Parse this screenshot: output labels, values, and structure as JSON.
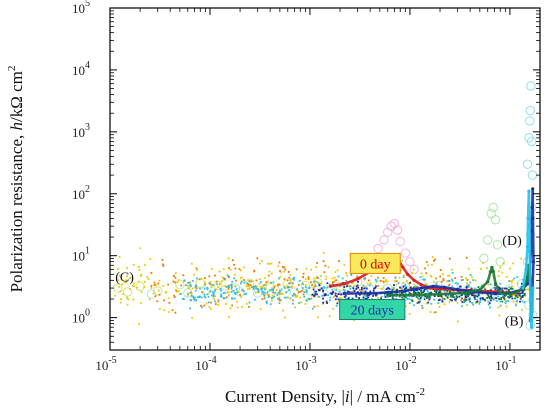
{
  "chart_data": {
    "type": "scatter",
    "title": "",
    "xlabel": "Current Density, |i| / mA cm^-2",
    "ylabel": "Polarization resistance, h/kΩ cm^2",
    "xlabel_parts": {
      "a": "Current Density, |",
      "i": "i",
      "b": "| / mA cm",
      "sup": "-2"
    },
    "ylabel_parts": {
      "a": "Polarization resistance, ",
      "h": "h",
      "b": "/kΩ cm",
      "sup": "2"
    },
    "x_scale": "log",
    "y_scale": "log",
    "xlim": [
      1e-05,
      0.2
    ],
    "ylim": [
      0.3,
      100000
    ],
    "grid": false,
    "x_ticks": [
      {
        "value": 1e-05,
        "base": "10",
        "exp": "-5"
      },
      {
        "value": 0.0001,
        "base": "10",
        "exp": "-4"
      },
      {
        "value": 0.001,
        "base": "10",
        "exp": "-3"
      },
      {
        "value": 0.01,
        "base": "10",
        "exp": "-2"
      },
      {
        "value": 0.1,
        "base": "10",
        "exp": "-1"
      }
    ],
    "y_ticks": [
      {
        "value": 1,
        "base": "10",
        "exp": "0"
      },
      {
        "value": 10,
        "base": "10",
        "exp": "1"
      },
      {
        "value": 100,
        "base": "10",
        "exp": "2"
      },
      {
        "value": 1000,
        "base": "10",
        "exp": "3"
      },
      {
        "value": 10000,
        "base": "10",
        "exp": "4"
      },
      {
        "value": 100000,
        "base": "10",
        "exp": "5"
      }
    ],
    "annotations": [
      {
        "text": "(C)",
        "x": 1.4e-05,
        "y": 3.8
      },
      {
        "text": "(D)",
        "x": 0.105,
        "y": 15
      },
      {
        "text": "(B)",
        "x": 0.11,
        "y": 0.75
      }
    ],
    "series_labels": [
      {
        "text": "0 day",
        "x": 0.0045,
        "y": 7.5,
        "bg": "#f8e85a",
        "fg": "#e00000",
        "border": "#e08a00"
      },
      {
        "text": "20 days",
        "x": 0.0042,
        "y": 1.35,
        "bg": "#33d6a6",
        "fg": "#1d2fa5",
        "border": "#1d7a66"
      }
    ],
    "series": [
      {
        "style": "open-circle",
        "color": "#c9e35a",
        "points": [
          [
            1.2e-05,
            3.0
          ],
          [
            1.5e-05,
            2.6
          ],
          [
            2e-05,
            3.2
          ],
          [
            3e-05,
            2.7
          ],
          [
            5e-05,
            3.4
          ],
          [
            8e-05,
            3.6
          ],
          [
            0.00012,
            3.3
          ],
          [
            0.00018,
            3.0
          ],
          [
            0.00025,
            3.6
          ],
          [
            0.0004,
            3.1
          ],
          [
            0.0006,
            3.5
          ],
          [
            0.0009,
            3.3
          ],
          [
            0.0012,
            3.7
          ],
          [
            0.002,
            3.2
          ],
          [
            0.003,
            3.8
          ],
          [
            0.005,
            3.4
          ]
        ]
      },
      {
        "style": "open-circle",
        "color": "#9fe0da",
        "points": [
          [
            2.6e-05,
            2.4
          ],
          [
            6e-05,
            2.5
          ],
          [
            9e-05,
            2.7
          ],
          [
            0.00014,
            2.4
          ],
          [
            0.0002,
            2.6
          ],
          [
            0.0003,
            2.5
          ],
          [
            0.00045,
            2.8
          ],
          [
            0.0007,
            2.6
          ],
          [
            0.001,
            2.7
          ],
          [
            0.0016,
            2.9
          ],
          [
            0.0025,
            2.8
          ],
          [
            0.004,
            2.9
          ],
          [
            0.006,
            3.0
          ],
          [
            0.009,
            3.2
          ],
          [
            0.013,
            3.5
          ],
          [
            0.019,
            3.3
          ],
          [
            0.027,
            3.1
          ],
          [
            0.038,
            2.8
          ],
          [
            0.05,
            2.7
          ],
          [
            0.07,
            2.6
          ],
          [
            0.1,
            2.9
          ],
          [
            0.13,
            3.5
          ],
          [
            0.15,
            8.0
          ],
          [
            0.16,
            22.0
          ],
          [
            0.165,
            60.0
          ],
          [
            0.17,
            1.1
          ],
          [
            0.16,
            0.75
          ],
          [
            0.155,
            1.6
          ]
        ]
      },
      {
        "style": "open-circle",
        "color": "#f3a7d6",
        "points": [
          [
            0.0048,
            13
          ],
          [
            0.0055,
            18
          ],
          [
            0.006,
            24
          ],
          [
            0.0065,
            30
          ],
          [
            0.007,
            33
          ],
          [
            0.0075,
            26
          ],
          [
            0.008,
            17
          ],
          [
            0.009,
            11
          ],
          [
            0.01,
            8
          ],
          [
            0.011,
            6
          ]
        ]
      },
      {
        "style": "open-circle",
        "color": "#9fe39a",
        "points": [
          [
            0.055,
            9
          ],
          [
            0.06,
            18
          ],
          [
            0.065,
            48
          ],
          [
            0.068,
            60
          ],
          [
            0.072,
            38
          ],
          [
            0.075,
            15
          ],
          [
            0.08,
            8
          ]
        ]
      },
      {
        "style": "open-circle",
        "color": "#7fd8ef",
        "points": [
          [
            0.15,
            300
          ],
          [
            0.155,
            800
          ],
          [
            0.16,
            2200
          ],
          [
            0.162,
            5500
          ],
          [
            0.158,
            1500
          ],
          [
            0.165,
            700
          ],
          [
            0.168,
            200
          ]
        ]
      },
      {
        "style": "dot",
        "color": "#f0c800",
        "xlog": [
          -5.0,
          -0.8
        ],
        "ybase": 3.1,
        "spread": 0.22,
        "count": 420,
        "seed": 11
      },
      {
        "style": "dot",
        "color": "#f07a00",
        "xlog": [
          -4.6,
          -1.4
        ],
        "ybase": 3.4,
        "spread": 0.2,
        "count": 220,
        "seed": 23
      },
      {
        "style": "dot",
        "color": "#30c0e8",
        "xlog": [
          -4.3,
          -0.85
        ],
        "ybase": 2.6,
        "spread": 0.12,
        "count": 380,
        "seed": 37
      },
      {
        "style": "dot",
        "color": "#1d2fa5",
        "xlog": [
          -3.0,
          -0.85
        ],
        "ybase": 2.45,
        "spread": 0.07,
        "count": 260,
        "seed": 41
      },
      {
        "style": "dot",
        "color": "#19783c",
        "xlog": [
          -2.2,
          -0.85
        ],
        "ybase": 2.4,
        "spread": 0.06,
        "count": 160,
        "seed": 53
      },
      {
        "style": "line",
        "color": "#e01a1a",
        "points": [
          [
            0.0016,
            3.2
          ],
          [
            0.0022,
            3.5
          ],
          [
            0.003,
            4.2
          ],
          [
            0.004,
            5.5
          ],
          [
            0.005,
            7.0
          ],
          [
            0.006,
            8.8
          ],
          [
            0.0068,
            10.0
          ],
          [
            0.0075,
            9.0
          ],
          [
            0.0085,
            6.5
          ],
          [
            0.0095,
            5.0
          ],
          [
            0.011,
            4.0
          ],
          [
            0.013,
            3.4
          ],
          [
            0.016,
            3.0
          ],
          [
            0.02,
            2.9
          ],
          [
            0.03,
            2.8
          ],
          [
            0.05,
            2.7
          ],
          [
            0.07,
            2.6
          ],
          [
            0.1,
            2.5
          ],
          [
            0.12,
            2.5
          ]
        ]
      },
      {
        "style": "line",
        "color": "#1d2fa5",
        "points": [
          [
            0.0022,
            2.45
          ],
          [
            0.004,
            2.45
          ],
          [
            0.006,
            2.55
          ],
          [
            0.009,
            2.7
          ],
          [
            0.013,
            3.0
          ],
          [
            0.017,
            3.2
          ],
          [
            0.022,
            3.1
          ],
          [
            0.03,
            2.85
          ],
          [
            0.045,
            2.6
          ],
          [
            0.07,
            2.45
          ],
          [
            0.1,
            2.5
          ],
          [
            0.13,
            2.8
          ],
          [
            0.15,
            3.5
          ],
          [
            0.158,
            6
          ],
          [
            0.162,
            12
          ],
          [
            0.165,
            25
          ],
          [
            0.167,
            60
          ],
          [
            0.169,
            120
          ],
          [
            0.17,
            40
          ],
          [
            0.172,
            8
          ],
          [
            0.168,
            3
          ],
          [
            0.165,
            1.5
          ],
          [
            0.16,
            0.9
          ]
        ]
      },
      {
        "style": "line",
        "color": "#1b7a3a",
        "points": [
          [
            0.006,
            2.3
          ],
          [
            0.01,
            2.3
          ],
          [
            0.02,
            2.4
          ],
          [
            0.035,
            2.5
          ],
          [
            0.05,
            2.8
          ],
          [
            0.06,
            3.8
          ],
          [
            0.064,
            5.5
          ],
          [
            0.066,
            6.5
          ],
          [
            0.068,
            5.6
          ],
          [
            0.072,
            3.5
          ],
          [
            0.08,
            2.5
          ],
          [
            0.1,
            2.4
          ],
          [
            0.12,
            2.6
          ],
          [
            0.14,
            3.2
          ],
          [
            0.15,
            4.5
          ],
          [
            0.155,
            7
          ],
          [
            0.16,
            4
          ],
          [
            0.163,
            2
          ],
          [
            0.165,
            1.2
          ]
        ]
      },
      {
        "style": "line",
        "color": "#22c2ea",
        "points": [
          [
            0.135,
            3
          ],
          [
            0.145,
            6
          ],
          [
            0.15,
            14
          ],
          [
            0.152,
            40
          ],
          [
            0.155,
            110
          ],
          [
            0.157,
            30
          ],
          [
            0.16,
            2
          ],
          [
            0.162,
            0.9
          ],
          [
            0.165,
            0.7
          ],
          [
            0.168,
            1.4
          ],
          [
            0.17,
            3
          ]
        ]
      }
    ]
  }
}
